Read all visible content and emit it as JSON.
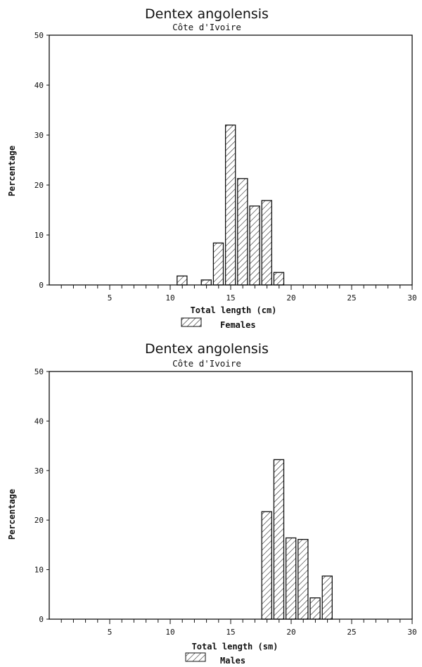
{
  "chart_data": [
    {
      "type": "bar",
      "title": "Dentex angolensis",
      "subtitle": "Côte d'Ivoire",
      "xlabel": "Total length (cm)",
      "ylabel": "Percentage",
      "legend": "Females",
      "x": [
        11,
        13,
        14,
        15,
        16,
        17,
        18,
        19
      ],
      "values": [
        1.8,
        1.0,
        8.4,
        32.0,
        21.3,
        15.8,
        16.9,
        2.5
      ],
      "xlim": [
        0,
        30
      ],
      "ylim": [
        0,
        50
      ],
      "xticks": [
        5,
        10,
        15,
        20,
        25,
        30
      ],
      "yticks": [
        0,
        10,
        20,
        30,
        40,
        50
      ],
      "fill": "hatched"
    },
    {
      "type": "bar",
      "title": "Dentex angolensis",
      "subtitle": "Côte d'Ivoire",
      "xlabel": "Total length (sm)",
      "ylabel": "Percentage",
      "legend": "Males",
      "x": [
        18,
        19,
        20,
        21,
        22,
        23
      ],
      "values": [
        21.7,
        32.2,
        16.4,
        16.1,
        4.3,
        8.7
      ],
      "xlim": [
        0,
        30
      ],
      "ylim": [
        0,
        50
      ],
      "xticks": [
        5,
        10,
        15,
        20,
        25,
        30
      ],
      "yticks": [
        0,
        10,
        20,
        30,
        40,
        50
      ],
      "fill": "hatched"
    }
  ]
}
